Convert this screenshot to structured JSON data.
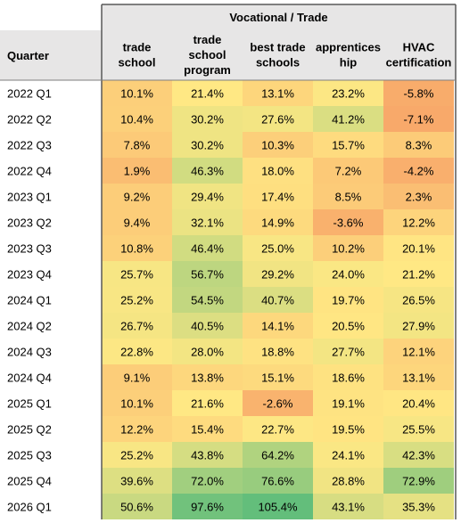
{
  "chart_data": {
    "type": "heatmap",
    "title": "",
    "group_header": "Vocational / Trade",
    "row_header": "Quarter",
    "columns": [
      [
        "trade",
        "school"
      ],
      [
        "trade",
        "school",
        "program"
      ],
      [
        "best trade",
        "schools"
      ],
      [
        "apprentices",
        "hip"
      ],
      [
        "HVAC",
        "certification"
      ]
    ],
    "rows": [
      "2022 Q1",
      "2022 Q2",
      "2022 Q3",
      "2022 Q4",
      "2023 Q1",
      "2023 Q2",
      "2023 Q3",
      "2023 Q4",
      "2024 Q1",
      "2024 Q2",
      "2024 Q3",
      "2024 Q4",
      "2025 Q1",
      "2025 Q2",
      "2025 Q3",
      "2025 Q4",
      "2026 Q1"
    ],
    "values": [
      [
        10.1,
        21.4,
        13.1,
        23.2,
        -5.8
      ],
      [
        10.4,
        30.2,
        27.6,
        41.2,
        -7.1
      ],
      [
        7.8,
        30.2,
        10.3,
        15.7,
        8.3
      ],
      [
        1.9,
        46.3,
        18.0,
        7.2,
        -4.2
      ],
      [
        9.2,
        29.4,
        17.4,
        8.5,
        2.3
      ],
      [
        9.4,
        32.1,
        14.9,
        -3.6,
        12.2
      ],
      [
        10.8,
        46.4,
        25.0,
        10.2,
        20.1
      ],
      [
        25.7,
        56.7,
        29.2,
        24.0,
        21.2
      ],
      [
        25.2,
        54.5,
        40.7,
        19.7,
        26.5
      ],
      [
        26.7,
        40.5,
        14.1,
        20.5,
        27.9
      ],
      [
        22.8,
        28.0,
        18.8,
        27.7,
        12.1
      ],
      [
        9.1,
        13.8,
        15.1,
        18.6,
        13.1
      ],
      [
        10.1,
        21.6,
        -2.6,
        19.1,
        20.4
      ],
      [
        12.2,
        15.4,
        22.7,
        19.5,
        25.5
      ],
      [
        25.2,
        43.8,
        64.2,
        24.1,
        42.3
      ],
      [
        39.6,
        72.0,
        76.6,
        28.8,
        72.9
      ],
      [
        50.6,
        97.6,
        105.4,
        43.1,
        35.3
      ]
    ],
    "value_suffix": "%",
    "color_scale": {
      "low": "#f8a96a",
      "mid": "#ffe884",
      "high": "#63be7b"
    }
  }
}
